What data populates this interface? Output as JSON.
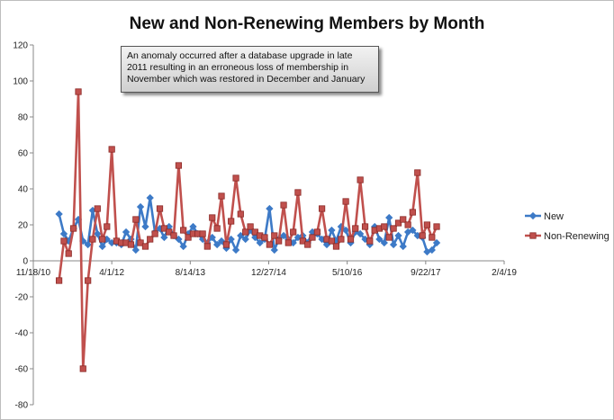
{
  "chart_data": {
    "type": "line",
    "title": "New and Non-Renewing Members by Month",
    "annotation": "An anomaly occurred after a database upgrade in late 2011 resulting in an erroneous loss of membership in November which was restored in December and January",
    "xlabel": "",
    "ylabel": "",
    "ylim": [
      -80,
      120
    ],
    "y_ticks": [
      "-80",
      "-60",
      "-40",
      "-20",
      "0",
      "20",
      "40",
      "60",
      "80",
      "100",
      "120"
    ],
    "x_ticks": [
      "11/18/10",
      "4/1/12",
      "8/14/13",
      "12/27/14",
      "5/10/16",
      "9/22/17",
      "2/4/19"
    ],
    "grid": "off",
    "legend_position": "right",
    "colors": {
      "new": "#3d7ac7",
      "non_renewing": "#c0504d"
    },
    "series": [
      {
        "name": "New",
        "x": [
          "2011-05-01",
          "2011-06-01",
          "2011-07-01",
          "2011-08-01",
          "2011-09-01",
          "2011-10-01",
          "2011-11-01",
          "2011-12-01",
          "2012-01-01",
          "2012-02-01",
          "2012-03-01",
          "2012-04-01",
          "2012-05-01",
          "2012-06-01",
          "2012-07-01",
          "2012-08-01",
          "2012-09-01",
          "2012-10-01",
          "2012-11-01",
          "2012-12-01",
          "2013-01-01",
          "2013-02-01",
          "2013-03-01",
          "2013-04-01",
          "2013-05-01",
          "2013-06-01",
          "2013-07-01",
          "2013-08-01",
          "2013-09-01",
          "2013-10-01",
          "2013-11-01",
          "2013-12-01",
          "2014-01-01",
          "2014-02-01",
          "2014-03-01",
          "2014-04-01",
          "2014-05-01",
          "2014-06-01",
          "2014-07-01",
          "2014-08-01",
          "2014-09-01",
          "2014-10-01",
          "2014-11-01",
          "2014-12-01",
          "2015-01-01",
          "2015-02-01",
          "2015-03-01",
          "2015-04-01",
          "2015-05-01",
          "2015-06-01",
          "2015-07-01",
          "2015-08-01",
          "2015-09-01",
          "2015-10-01",
          "2015-11-01",
          "2015-12-01",
          "2016-01-01",
          "2016-02-01",
          "2016-03-01",
          "2016-04-01",
          "2016-05-01",
          "2016-06-01",
          "2016-07-01",
          "2016-08-01",
          "2016-09-01",
          "2016-10-01",
          "2016-11-01",
          "2016-12-01",
          "2017-01-01",
          "2017-02-01",
          "2017-03-01",
          "2017-04-01",
          "2017-05-01",
          "2017-06-01",
          "2017-07-01",
          "2017-08-01",
          "2017-09-01",
          "2017-10-01",
          "2017-11-01",
          "2017-12-01"
        ],
        "values": [
          26,
          15,
          11,
          18,
          23,
          11,
          9,
          28,
          15,
          8,
          12,
          10,
          10,
          9,
          16,
          12,
          6,
          30,
          19,
          35,
          16,
          18,
          13,
          19,
          14,
          12,
          8,
          15,
          19,
          15,
          12,
          10,
          13,
          9,
          11,
          7,
          12,
          6,
          14,
          12,
          17,
          13,
          10,
          12,
          29,
          6,
          12,
          14,
          12,
          10,
          13,
          14,
          10,
          16,
          15,
          12,
          9,
          17,
          11,
          19,
          17,
          10,
          16,
          15,
          12,
          9,
          19,
          12,
          10,
          24,
          9,
          14,
          8,
          16,
          17,
          14,
          13,
          5,
          6,
          10
        ]
      },
      {
        "name": "Non-Renewing",
        "x": [
          "2011-05-01",
          "2011-06-01",
          "2011-07-01",
          "2011-08-01",
          "2011-09-01",
          "2011-10-01",
          "2011-11-01",
          "2011-12-01",
          "2012-01-01",
          "2012-02-01",
          "2012-03-01",
          "2012-04-01",
          "2012-05-01",
          "2012-06-01",
          "2012-07-01",
          "2012-08-01",
          "2012-09-01",
          "2012-10-01",
          "2012-11-01",
          "2012-12-01",
          "2013-01-01",
          "2013-02-01",
          "2013-03-01",
          "2013-04-01",
          "2013-05-01",
          "2013-06-01",
          "2013-07-01",
          "2013-08-01",
          "2013-09-01",
          "2013-10-01",
          "2013-11-01",
          "2013-12-01",
          "2014-01-01",
          "2014-02-01",
          "2014-03-01",
          "2014-04-01",
          "2014-05-01",
          "2014-06-01",
          "2014-07-01",
          "2014-08-01",
          "2014-09-01",
          "2014-10-01",
          "2014-11-01",
          "2014-12-01",
          "2015-01-01",
          "2015-02-01",
          "2015-03-01",
          "2015-04-01",
          "2015-05-01",
          "2015-06-01",
          "2015-07-01",
          "2015-08-01",
          "2015-09-01",
          "2015-10-01",
          "2015-11-01",
          "2015-12-01",
          "2016-01-01",
          "2016-02-01",
          "2016-03-01",
          "2016-04-01",
          "2016-05-01",
          "2016-06-01",
          "2016-07-01",
          "2016-08-01",
          "2016-09-01",
          "2016-10-01",
          "2016-11-01",
          "2016-12-01",
          "2017-01-01",
          "2017-02-01",
          "2017-03-01",
          "2017-04-01",
          "2017-05-01",
          "2017-06-01",
          "2017-07-01",
          "2017-08-01",
          "2017-09-01",
          "2017-10-01",
          "2017-11-01",
          "2017-12-01"
        ],
        "values": [
          -11,
          11,
          4,
          18,
          94,
          -60,
          -11,
          12,
          29,
          12,
          19,
          62,
          11,
          10,
          10,
          9,
          23,
          10,
          8,
          12,
          15,
          29,
          18,
          16,
          14,
          53,
          17,
          13,
          15,
          15,
          15,
          8,
          24,
          18,
          36,
          9,
          22,
          46,
          26,
          16,
          19,
          16,
          14,
          13,
          9,
          14,
          11,
          31,
          10,
          16,
          38,
          11,
          9,
          13,
          16,
          29,
          12,
          11,
          8,
          12,
          33,
          12,
          18,
          45,
          19,
          11,
          17,
          18,
          19,
          13,
          18,
          21,
          23,
          20,
          27,
          49,
          14,
          20,
          13,
          19
        ]
      }
    ]
  }
}
